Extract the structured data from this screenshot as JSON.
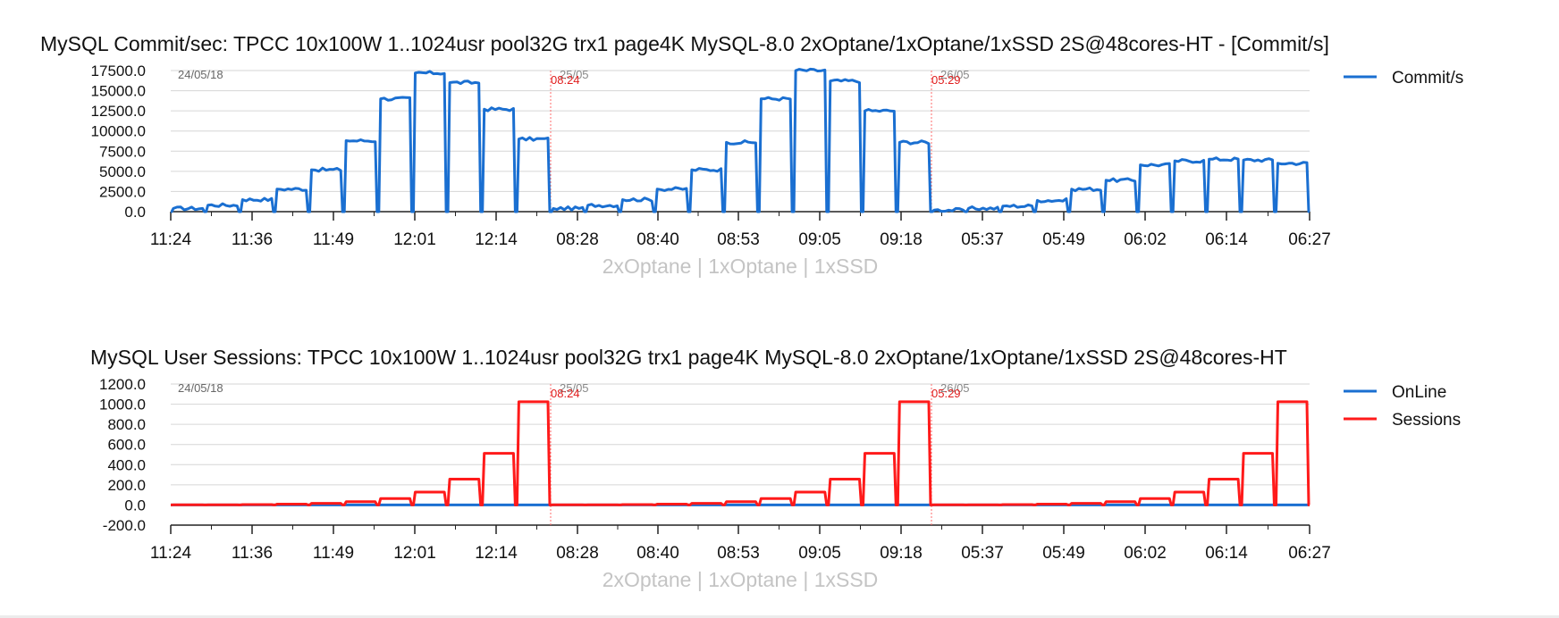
{
  "chart_data": [
    {
      "type": "line",
      "title": "MySQL Commit/sec: TPCC 10x100W 1..1024usr pool32G trx1 page4K MySQL-8.0 2xOptane/1xOptane/1xSSD 2S@48cores-HT - [Commit/s]",
      "xlabel": "2xOptane | 1xOptane | 1xSSD",
      "ylabel": "",
      "ylim": [
        0,
        17500
      ],
      "yticks": [
        "17500.0",
        "15000.0",
        "12500.0",
        "10000.0",
        "7500.0",
        "5000.0",
        "2500.0",
        "0.0"
      ],
      "xticks": [
        "11:24",
        "11:36",
        "11:49",
        "12:01",
        "12:14",
        "08:28",
        "08:40",
        "08:53",
        "09:05",
        "09:18",
        "05:37",
        "05:49",
        "06:02",
        "06:14",
        "06:27"
      ],
      "start_date": "24/05/18",
      "day_markers": [
        {
          "date": "25/05",
          "time": "08:24"
        },
        {
          "date": "26/05",
          "time": "05:29"
        }
      ],
      "grid": true,
      "legend_position": "top-right",
      "series": [
        {
          "name": "Commit/s",
          "color": "#1a6fd1",
          "runs": [
            [
              400,
              800,
              1500,
              2800,
              5200,
              8800,
              14000,
              17200,
              16000,
              12700,
              9000
            ],
            [
              400,
              800,
              1500,
              2800,
              5200,
              8600,
              14000,
              17500,
              16200,
              12500,
              8600
            ],
            [
              200,
              400,
              700,
              1400,
              2800,
              3900,
              5800,
              6300,
              6500,
              6400,
              6000
            ]
          ]
        }
      ]
    },
    {
      "type": "line",
      "title": "MySQL User Sessions: TPCC 10x100W 1..1024usr pool32G trx1 page4K MySQL-8.0 2xOptane/1xOptane/1xSSD 2S@48cores-HT",
      "xlabel": "2xOptane | 1xOptane | 1xSSD",
      "ylabel": "",
      "ylim": [
        -200,
        1200
      ],
      "yticks": [
        "1200.0",
        "1000.0",
        "800.0",
        "600.0",
        "400.0",
        "200.0",
        "0.0",
        "-200.0"
      ],
      "xticks": [
        "11:24",
        "11:36",
        "11:49",
        "12:01",
        "12:14",
        "08:28",
        "08:40",
        "08:53",
        "09:05",
        "09:18",
        "05:37",
        "05:49",
        "06:02",
        "06:14",
        "06:27"
      ],
      "start_date": "24/05/18",
      "day_markers": [
        {
          "date": "25/05",
          "time": "08:24"
        },
        {
          "date": "26/05",
          "time": "05:29"
        }
      ],
      "grid": true,
      "legend_position": "top-right",
      "series": [
        {
          "name": "OnLine",
          "color": "#1a6fd1",
          "runs": [
            [
              0,
              0,
              0,
              0,
              0,
              0,
              0,
              0,
              0,
              0,
              0
            ],
            [
              0,
              0,
              0,
              0,
              0,
              0,
              0,
              0,
              0,
              0,
              0
            ],
            [
              0,
              0,
              0,
              0,
              0,
              0,
              0,
              0,
              0,
              0,
              0
            ]
          ]
        },
        {
          "name": "Sessions",
          "color": "#ff1a1a",
          "runs": [
            [
              1,
              2,
              4,
              8,
              16,
              32,
              64,
              128,
              256,
              512,
              1024
            ],
            [
              1,
              2,
              4,
              8,
              16,
              32,
              64,
              128,
              256,
              512,
              1024
            ],
            [
              1,
              2,
              4,
              8,
              16,
              32,
              64,
              128,
              256,
              512,
              1024
            ]
          ]
        }
      ]
    }
  ]
}
